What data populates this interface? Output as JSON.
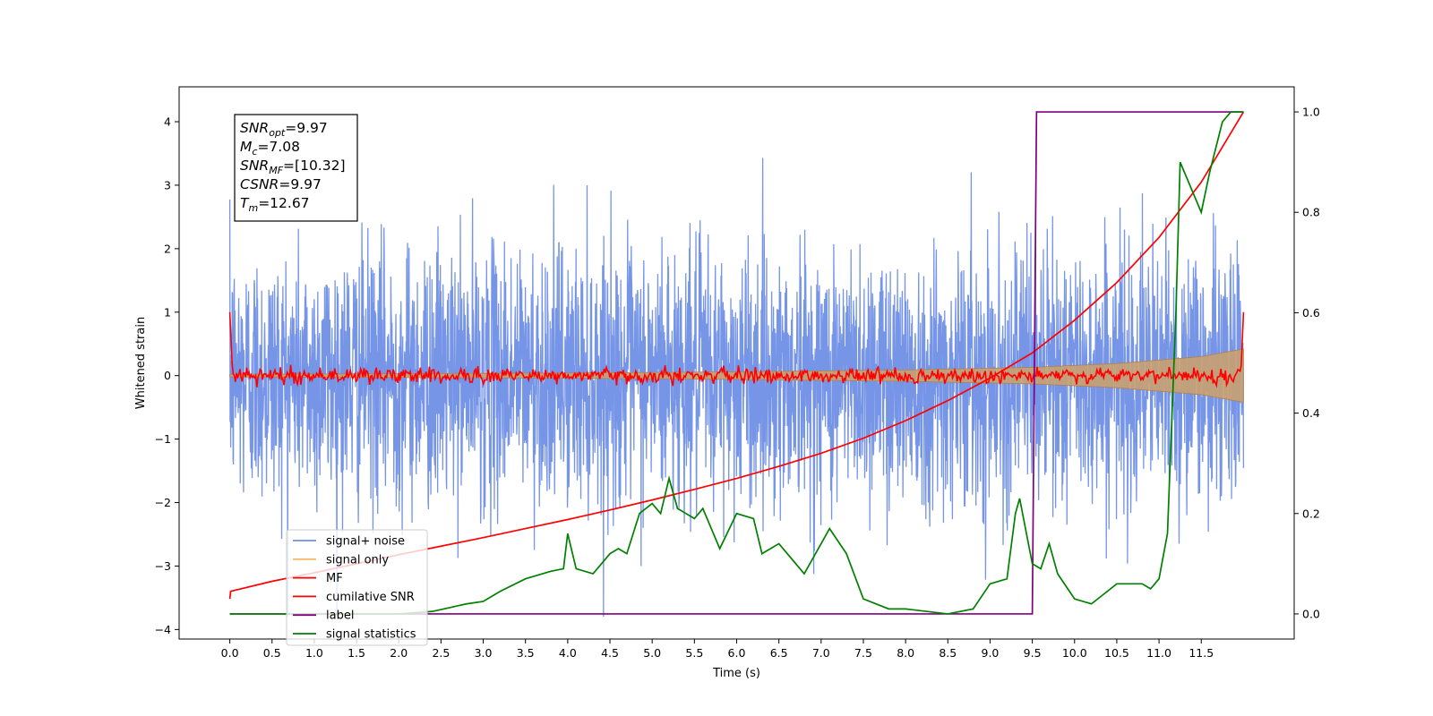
{
  "chart_data": {
    "type": "line",
    "title": "",
    "xlabel": "Time (s)",
    "ylabel": "Whitened strain",
    "y2label": "",
    "xlim": [
      -0.6,
      12.6
    ],
    "ylim": [
      -4.15,
      4.55
    ],
    "y2lim": [
      -0.05,
      1.05
    ],
    "grid": false,
    "legend_position": "lower-left",
    "x_ticks": [
      0.0,
      0.5,
      1.0,
      1.5,
      2.0,
      2.5,
      3.0,
      3.5,
      4.0,
      4.5,
      5.0,
      5.5,
      6.0,
      6.5,
      7.0,
      7.5,
      8.0,
      8.5,
      9.0,
      9.5,
      10.0,
      10.5,
      11.0,
      11.5
    ],
    "x_tick_labels": [
      "0.0",
      "0.5",
      "1.0",
      "1.5",
      "2.0",
      "2.5",
      "3.0",
      "3.5",
      "4.0",
      "4.5",
      "5.0",
      "5.5",
      "6.0",
      "6.5",
      "7.0",
      "7.5",
      "8.0",
      "8.5",
      "9.0",
      "9.5",
      "10.0",
      "10.5",
      "11.0",
      "11.5"
    ],
    "y_ticks": [
      -4,
      -3,
      -2,
      -1,
      0,
      1,
      2,
      3,
      4
    ],
    "y_tick_labels": [
      "−4",
      "−3",
      "−2",
      "−1",
      "0",
      "1",
      "2",
      "3",
      "4"
    ],
    "y2_ticks": [
      0.0,
      0.2,
      0.4,
      0.6,
      0.8,
      1.0
    ],
    "y2_tick_labels": [
      "0.0",
      "0.2",
      "0.4",
      "0.6",
      "0.8",
      "1.0"
    ],
    "annotation": {
      "lines": [
        {
          "sym": "SNR",
          "sub": "opt",
          "value": "=9.97"
        },
        {
          "sym": "M",
          "sub": "c",
          "value": "=7.08"
        },
        {
          "sym": "SNR",
          "sub": "MF",
          "value": "=[10.32]"
        },
        {
          "sym": "CSNR",
          "sub": "",
          "value": "=9.97"
        },
        {
          "sym": "T",
          "sub": "m",
          "value": "=12.67"
        }
      ]
    },
    "series": [
      {
        "name": "signal+ noise",
        "color": "#6f8fe6",
        "axis": "left",
        "style": "noise",
        "x_range": [
          0.0,
          12.0
        ],
        "amplitude": 1.0,
        "y_range": [
          -3.8,
          4.15
        ]
      },
      {
        "name": "signal only",
        "color": "#f5b96a",
        "axis": "left",
        "style": "chirp_envelope",
        "envelope": {
          "x": [
            0.0,
            2.0,
            4.0,
            6.0,
            8.0,
            9.5,
            10.5,
            11.5,
            12.0
          ],
          "y": [
            0.02,
            0.03,
            0.04,
            0.06,
            0.09,
            0.13,
            0.19,
            0.3,
            0.42
          ]
        }
      },
      {
        "name": "MF",
        "color": "#ff0000",
        "axis": "left",
        "style": "mf",
        "x_range": [
          0.0,
          12.0
        ],
        "edge_value": 1.0,
        "amplitude": 0.1
      },
      {
        "name": "cumilative SNR",
        "color": "#ff0000",
        "axis": "right",
        "x": [
          0.0,
          0.01,
          0.5,
          1.0,
          1.5,
          2.0,
          2.5,
          3.0,
          3.5,
          4.0,
          4.5,
          5.0,
          5.5,
          6.0,
          6.5,
          7.0,
          7.5,
          8.0,
          8.5,
          9.0,
          9.5,
          10.0,
          10.5,
          11.0,
          11.5,
          12.0
        ],
        "y": [
          0.03,
          0.045,
          0.065,
          0.082,
          0.1,
          0.118,
          0.135,
          0.152,
          0.17,
          0.188,
          0.207,
          0.227,
          0.248,
          0.27,
          0.294,
          0.32,
          0.35,
          0.385,
          0.425,
          0.47,
          0.52,
          0.585,
          0.66,
          0.75,
          0.86,
          1.0
        ]
      },
      {
        "name": "label",
        "color": "#800080",
        "axis": "right",
        "x": [
          0.0,
          9.5,
          9.55,
          12.0
        ],
        "y": [
          0.0,
          0.0,
          1.0,
          1.0
        ]
      },
      {
        "name": "signal statistics",
        "color": "#008000",
        "axis": "right",
        "x": [
          0.0,
          2.0,
          2.4,
          2.8,
          3.0,
          3.2,
          3.5,
          3.8,
          3.95,
          4.0,
          4.1,
          4.3,
          4.5,
          4.6,
          4.7,
          4.85,
          5.0,
          5.1,
          5.2,
          5.3,
          5.5,
          5.6,
          5.8,
          6.0,
          6.2,
          6.3,
          6.5,
          6.8,
          7.0,
          7.1,
          7.3,
          7.5,
          7.8,
          8.0,
          8.5,
          8.8,
          9.0,
          9.2,
          9.3,
          9.35,
          9.5,
          9.6,
          9.7,
          9.8,
          10.0,
          10.2,
          10.5,
          10.8,
          10.9,
          11.0,
          11.1,
          11.2,
          11.25,
          11.4,
          11.5,
          11.6,
          11.75,
          11.85,
          12.0
        ],
        "y": [
          0.0,
          0.0,
          0.005,
          0.02,
          0.025,
          0.045,
          0.07,
          0.085,
          0.09,
          0.16,
          0.09,
          0.08,
          0.12,
          0.13,
          0.12,
          0.2,
          0.22,
          0.2,
          0.27,
          0.21,
          0.19,
          0.21,
          0.13,
          0.2,
          0.19,
          0.12,
          0.14,
          0.08,
          0.14,
          0.17,
          0.12,
          0.03,
          0.01,
          0.01,
          0.0,
          0.01,
          0.06,
          0.07,
          0.2,
          0.23,
          0.1,
          0.09,
          0.14,
          0.08,
          0.03,
          0.02,
          0.06,
          0.06,
          0.05,
          0.07,
          0.16,
          0.6,
          0.9,
          0.84,
          0.8,
          0.88,
          0.98,
          1.0,
          1.0
        ]
      }
    ]
  }
}
